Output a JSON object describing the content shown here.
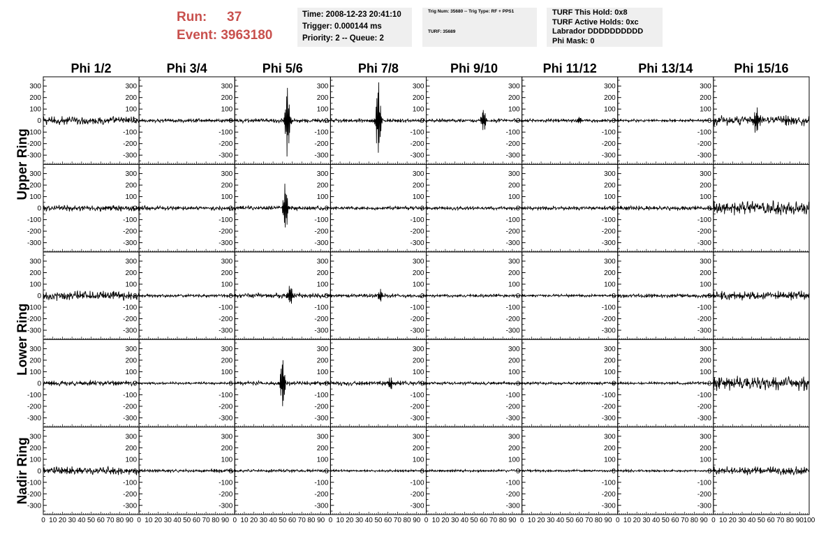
{
  "header": {
    "run_label": "Run:",
    "run_value": "37",
    "event_label": "Event:",
    "event_value": "3963180",
    "time": "Time: 2008-12-23 20:41:10",
    "trigger": "Trigger: 0.000144 ms",
    "priority": "Priority: 2 -- Queue: 2",
    "trig_num": "Trig Num: 35680 -- Trig Type: RF + PPS1",
    "turf": "TURF: 35689",
    "turf_this_hold": "TURF This Hold: 0x8",
    "turf_active_holds": "TURF Active Holds: 0xc",
    "labrador": "Labrador DDDDDDDDDD",
    "phi_mask": "Phi Mask: 0"
  },
  "colors": {
    "accent": "#c8504d",
    "box_bg": "#efefef",
    "trace": "#000000"
  },
  "chart_data": {
    "type": "line",
    "columns": [
      "Phi 1/2",
      "Phi 3/4",
      "Phi 5/6",
      "Phi 7/8",
      "Phi 9/10",
      "Phi 11/12",
      "Phi 13/14",
      "Phi 15/16"
    ],
    "rows": [
      "Upper Ring",
      "Upper Ring",
      "Lower Ring",
      "Lower Ring",
      "Nadir Ring"
    ],
    "row_groups": [
      {
        "label": "Upper Ring",
        "rows": [
          0,
          1
        ]
      },
      {
        "label": "Lower Ring",
        "rows": [
          2,
          3
        ]
      },
      {
        "label": "Nadir Ring",
        "rows": [
          4
        ]
      }
    ],
    "xlim": [
      0,
      100
    ],
    "ylim": [
      -380,
      380
    ],
    "yticks": [
      300,
      200,
      100,
      0,
      -100,
      -200,
      -300
    ],
    "xticks": [
      0,
      10,
      20,
      30,
      40,
      50,
      60,
      70,
      80,
      90,
      100
    ],
    "x_tick_labels": [
      "0",
      "10",
      "20",
      "30",
      "40",
      "50",
      "60",
      "70",
      "80",
      "90",
      "100"
    ],
    "y_tick_labels": [
      "300",
      "200",
      "100",
      "0",
      "-100",
      "-200",
      "-300"
    ],
    "waveform_features": [
      {
        "row": 0,
        "col": 0,
        "noise_amp": 40
      },
      {
        "row": 0,
        "col": 1,
        "noise_amp": 18
      },
      {
        "row": 0,
        "col": 2,
        "noise_amp": 22,
        "pulse_x": 55,
        "pulse_amp": 330
      },
      {
        "row": 0,
        "col": 3,
        "noise_amp": 20,
        "pulse_x": 50,
        "pulse_amp": 360
      },
      {
        "row": 0,
        "col": 4,
        "noise_amp": 18,
        "pulse_x": 60,
        "pulse_amp": 110
      },
      {
        "row": 0,
        "col": 5,
        "noise_amp": 16,
        "pulse_x": 60,
        "pulse_amp": 40
      },
      {
        "row": 0,
        "col": 6,
        "noise_amp": 14
      },
      {
        "row": 0,
        "col": 7,
        "noise_amp": 50,
        "pulse_x": 45,
        "pulse_amp": 120
      },
      {
        "row": 1,
        "col": 0,
        "noise_amp": 30
      },
      {
        "row": 1,
        "col": 1,
        "noise_amp": 22
      },
      {
        "row": 1,
        "col": 2,
        "noise_amp": 22,
        "pulse_x": 53,
        "pulse_amp": 230
      },
      {
        "row": 1,
        "col": 3,
        "noise_amp": 18
      },
      {
        "row": 1,
        "col": 4,
        "noise_amp": 18
      },
      {
        "row": 1,
        "col": 5,
        "noise_amp": 18
      },
      {
        "row": 1,
        "col": 6,
        "noise_amp": 22
      },
      {
        "row": 1,
        "col": 7,
        "noise_amp": 70
      },
      {
        "row": 2,
        "col": 0,
        "noise_amp": 45
      },
      {
        "row": 2,
        "col": 1,
        "noise_amp": 15
      },
      {
        "row": 2,
        "col": 2,
        "noise_amp": 25,
        "pulse_x": 58,
        "pulse_amp": 100
      },
      {
        "row": 2,
        "col": 3,
        "noise_amp": 18,
        "pulse_x": 52,
        "pulse_amp": 60
      },
      {
        "row": 2,
        "col": 4,
        "noise_amp": 15
      },
      {
        "row": 2,
        "col": 5,
        "noise_amp": 14
      },
      {
        "row": 2,
        "col": 6,
        "noise_amp": 20
      },
      {
        "row": 2,
        "col": 7,
        "noise_amp": 45
      },
      {
        "row": 3,
        "col": 0,
        "noise_amp": 25
      },
      {
        "row": 3,
        "col": 1,
        "noise_amp": 12
      },
      {
        "row": 3,
        "col": 2,
        "noise_amp": 20,
        "pulse_x": 50,
        "pulse_amp": 250
      },
      {
        "row": 3,
        "col": 3,
        "noise_amp": 22,
        "pulse_x": 63,
        "pulse_amp": 60
      },
      {
        "row": 3,
        "col": 4,
        "noise_amp": 15
      },
      {
        "row": 3,
        "col": 5,
        "noise_amp": 14
      },
      {
        "row": 3,
        "col": 6,
        "noise_amp": 14
      },
      {
        "row": 3,
        "col": 7,
        "noise_amp": 70
      },
      {
        "row": 4,
        "col": 0,
        "noise_amp": 40
      },
      {
        "row": 4,
        "col": 1,
        "noise_amp": 16
      },
      {
        "row": 4,
        "col": 2,
        "noise_amp": 14
      },
      {
        "row": 4,
        "col": 3,
        "noise_amp": 12
      },
      {
        "row": 4,
        "col": 4,
        "noise_amp": 12
      },
      {
        "row": 4,
        "col": 5,
        "noise_amp": 12
      },
      {
        "row": 4,
        "col": 6,
        "noise_amp": 12
      },
      {
        "row": 4,
        "col": 7,
        "noise_amp": 40
      }
    ]
  }
}
